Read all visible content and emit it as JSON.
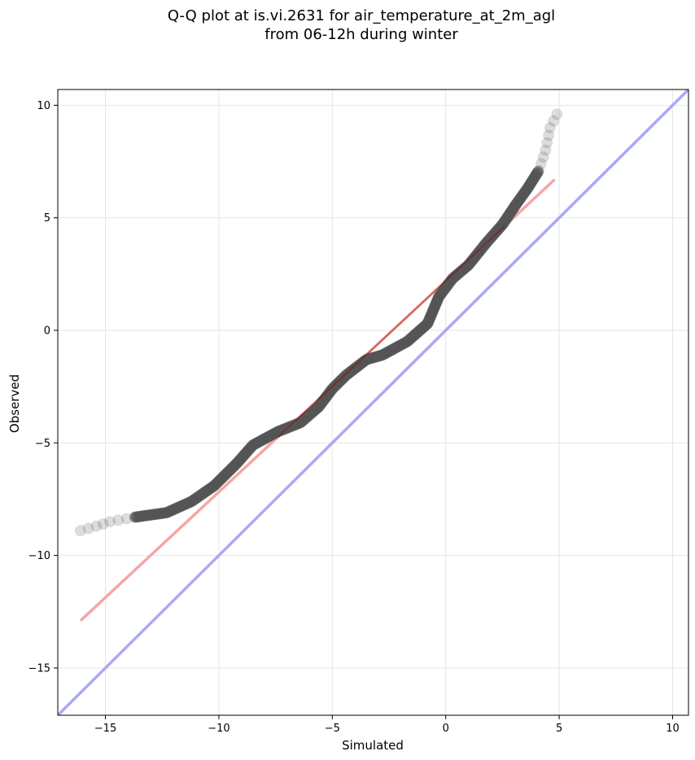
{
  "chart_data": {
    "type": "scatter",
    "title_line1": "Q-Q plot at is.vi.2631 for air_temperature_at_2m_agl",
    "title_line2": "from 06-12h during winter",
    "xlabel": "Simulated",
    "ylabel": "Observed",
    "xlim": [
      -17.1,
      10.7
    ],
    "ylim": [
      -17.1,
      10.7
    ],
    "xticks": [
      -15,
      -10,
      -5,
      0,
      5,
      10
    ],
    "yticks": [
      -15,
      -10,
      -5,
      0,
      5,
      10
    ],
    "xtick_labels": [
      "−15",
      "−10",
      "−5",
      "0",
      "5",
      "10"
    ],
    "ytick_labels": [
      "−15",
      "−10",
      "−5",
      "0",
      "5",
      "10"
    ],
    "grid": true,
    "colors": {
      "points": "#555555",
      "fit_line": "#f4a6a6",
      "identity_line": "#a9aaf4",
      "inner_line": "#8b0000"
    },
    "quantile_anchors": {
      "x": [
        -16.1,
        -15.4,
        -14.8,
        -13.7,
        -12.3,
        -11.2,
        -10.2,
        -9.2,
        -8.5,
        -7.4,
        -6.4,
        -5.6,
        -5.0,
        -4.4,
        -3.5,
        -2.8,
        -1.7,
        -0.8,
        -0.3,
        0.3,
        1.0,
        1.8,
        2.5,
        3.1,
        3.6,
        4.1,
        4.4,
        4.6,
        4.9
      ],
      "y": [
        -8.9,
        -8.7,
        -8.5,
        -8.3,
        -8.1,
        -7.6,
        -6.9,
        -5.9,
        -5.1,
        -4.5,
        -4.1,
        -3.4,
        -2.6,
        -2.0,
        -1.3,
        -1.1,
        -0.5,
        0.3,
        1.5,
        2.3,
        2.9,
        3.9,
        4.7,
        5.6,
        6.3,
        7.1,
        8.0,
        9.0,
        9.6
      ]
    },
    "series": [
      {
        "kind": "line",
        "x": [
          -16.1,
          4.8
        ],
        "y": [
          -12.9,
          6.7
        ]
      },
      {
        "kind": "line",
        "x": [
          -17.1,
          10.7
        ],
        "y": [
          -17.1,
          10.7
        ]
      }
    ]
  }
}
